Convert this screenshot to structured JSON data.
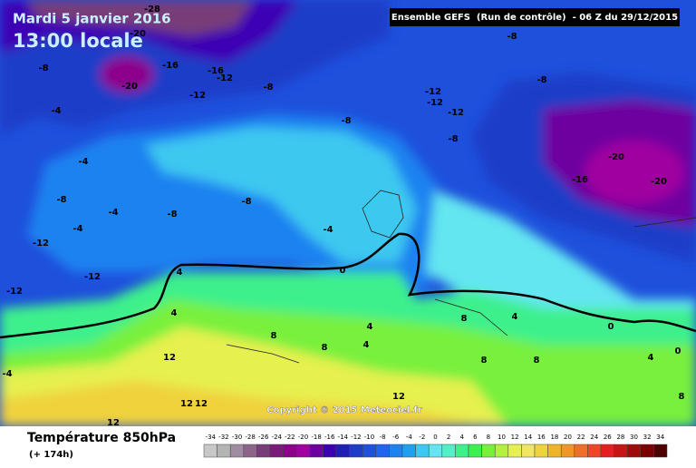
{
  "header": {
    "date": "Mardi 5 janvier 2016",
    "time": "13:00 locale",
    "run": "Ensemble GEFS  (Run de contrôle)  - 06 Z du 29/12/2015"
  },
  "copyright": "Copyright © 2015 Meteociel.fr",
  "map": {
    "labels": [
      -28,
      -20,
      -8,
      -16,
      -16,
      -12,
      -20,
      -8,
      -12,
      -8,
      -8,
      -12,
      -12,
      -12,
      -4,
      -8,
      -8,
      -4,
      -20,
      -16,
      -20,
      -8,
      -4,
      -8,
      -8,
      -4,
      -4,
      -12,
      -12,
      -12,
      4,
      0,
      4,
      8,
      4,
      0,
      8,
      4,
      4,
      8,
      12,
      -4,
      8,
      4,
      0,
      8,
      12,
      12,
      12,
      12,
      8
    ]
  },
  "legend": {
    "title": "Température 850hPa",
    "subtitle": "(+ 174h)",
    "scale": [
      -34,
      -32,
      -30,
      -28,
      -26,
      -24,
      -22,
      -20,
      -18,
      -16,
      -14,
      -12,
      -10,
      -8,
      -6,
      -4,
      -2,
      0,
      2,
      4,
      6,
      8,
      10,
      12,
      14,
      16,
      18,
      20,
      22,
      24,
      26,
      28,
      30,
      32,
      34
    ],
    "colors": [
      "#c8c8c8",
      "#b4b4b4",
      "#a08ca0",
      "#8c648c",
      "#783c78",
      "#7a1a7a",
      "#8c008c",
      "#a000a0",
      "#6e00a0",
      "#3c00b4",
      "#1e1eb4",
      "#1e3cc8",
      "#1e50dc",
      "#1e64f0",
      "#1e82f0",
      "#1ea0f0",
      "#3cc8f0",
      "#64e6f0",
      "#50f0c8",
      "#3cf08c",
      "#3cf050",
      "#78f03c",
      "#b4f03c",
      "#e6f050",
      "#f0e664",
      "#f0d23c",
      "#f0b428",
      "#f09628",
      "#f06e28",
      "#f04628",
      "#e61e1e",
      "#c81414",
      "#a00a0a",
      "#780000",
      "#500000"
    ]
  }
}
